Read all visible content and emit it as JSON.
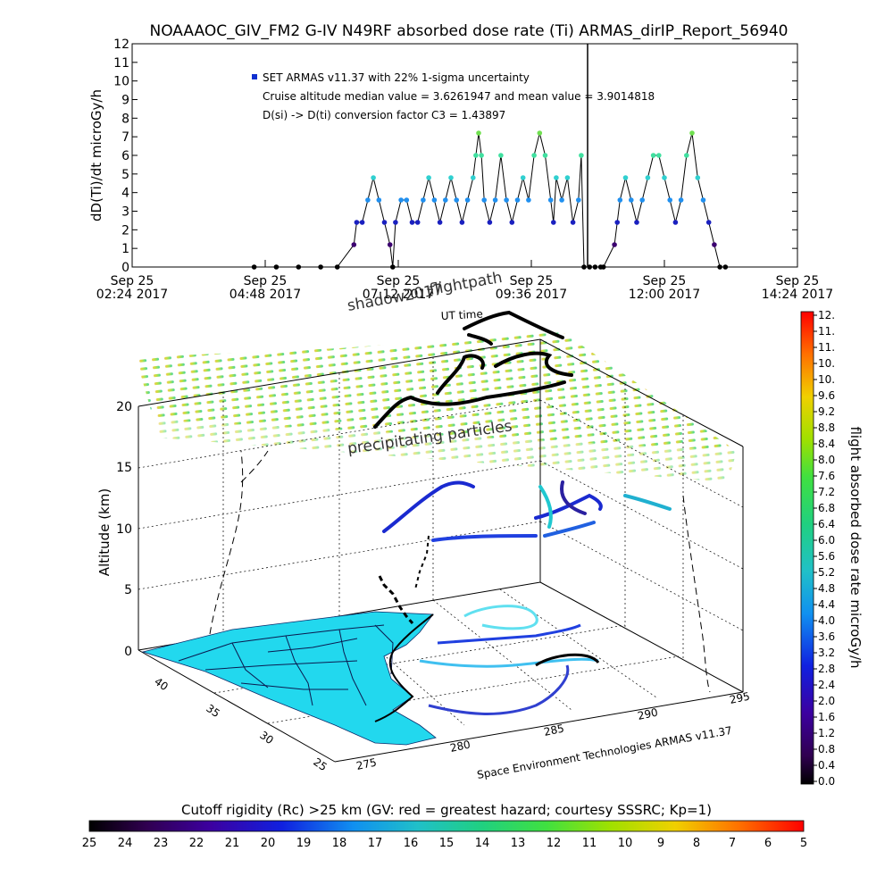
{
  "title": "NOAAAOC_GIV_FM2 G-IV   N49RF  absorbed dose rate (Ti) ARMAS_dirIP_Report_56940",
  "chart_data": [
    {
      "type": "line",
      "title": "NOAAAOC_GIV_FM2 G-IV   N49RF  absorbed dose rate (Ti) ARMAS_dirIP_Report_56940",
      "ylabel": "dD(Ti)/dt microGy/h",
      "xlabel": "",
      "ylim": [
        0,
        12
      ],
      "yticks": [
        "0",
        "1",
        "2",
        "3",
        "4",
        "5",
        "6",
        "7",
        "8",
        "9",
        "10",
        "11",
        "12"
      ],
      "xticks": [
        {
          "line1": "Sep 25",
          "line2": "02:24 2017"
        },
        {
          "line1": "Sep 25",
          "line2": "04:48 2017"
        },
        {
          "line1": "Sep 25",
          "line2": "07:12 2017"
        },
        {
          "line1": "Sep 25",
          "line2": "09:36 2017"
        },
        {
          "line1": "Sep 25",
          "line2": "12:00 2017"
        },
        {
          "line1": "Sep 25",
          "line2": "14:24 2017"
        }
      ],
      "xlim_hours": [
        2.4,
        14.4
      ],
      "annotations": [
        "SET ARMAS v11.37 with 22% 1-sigma uncertainty",
        "Cruise altitude median value = 3.6261947 and mean value = 3.9014818",
        "D(si) -> D(ti) conversion factor C3 = 1.43897"
      ],
      "legend_marker_color": "#1030d0",
      "series": [
        {
          "x": [
            4.6,
            5.0,
            5.4,
            5.8,
            6.1,
            6.4,
            6.45,
            6.55,
            6.65,
            6.75,
            6.85,
            6.95,
            7.05,
            7.1,
            7.15,
            7.25,
            7.35,
            7.45,
            7.55,
            7.65,
            7.75,
            7.85,
            7.95,
            8.05,
            8.15,
            8.25,
            8.35,
            8.45,
            8.55,
            8.6,
            8.65,
            8.7,
            8.75,
            8.85,
            8.95,
            9.05,
            9.15,
            9.25,
            9.35,
            9.45,
            9.55,
            9.65,
            9.75,
            9.85,
            9.95,
            10.0,
            10.05,
            10.15,
            10.25,
            10.35,
            10.45,
            10.5,
            10.55,
            10.65,
            10.75,
            10.85,
            10.9,
            11.1,
            11.15,
            11.2,
            11.3,
            11.4,
            11.5,
            11.6,
            11.7,
            11.8,
            11.9,
            12.0,
            12.1,
            12.2,
            12.3,
            12.4,
            12.5,
            12.6,
            12.7,
            12.8,
            12.9,
            13.0,
            13.1
          ],
          "y": [
            0,
            0,
            0,
            0,
            0,
            1.2,
            2.4,
            2.4,
            3.6,
            4.8,
            3.6,
            2.4,
            1.2,
            0,
            2.4,
            3.6,
            3.6,
            2.4,
            2.4,
            3.6,
            4.8,
            3.6,
            2.4,
            3.6,
            4.8,
            3.6,
            2.4,
            3.6,
            4.8,
            6.0,
            7.2,
            6.0,
            3.6,
            2.4,
            3.6,
            6.0,
            3.6,
            2.4,
            3.6,
            4.8,
            3.6,
            6.0,
            7.2,
            6.0,
            3.6,
            2.4,
            4.8,
            3.6,
            4.8,
            2.4,
            3.6,
            6.0,
            0,
            0,
            0,
            0,
            0,
            1.2,
            2.4,
            3.6,
            4.8,
            3.6,
            2.4,
            3.6,
            4.8,
            6.0,
            6.0,
            4.8,
            3.6,
            2.4,
            3.6,
            6.0,
            7.2,
            4.8,
            3.6,
            2.4,
            1.2,
            0,
            0
          ]
        }
      ]
    },
    {
      "type": "scatter",
      "title": "",
      "zlabel": "Altitude (km)",
      "zlim": [
        0,
        20
      ],
      "zticks": [
        "0",
        "5",
        "10",
        "15",
        "20"
      ],
      "lat_ticks": [
        "40",
        "35",
        "30",
        "25"
      ],
      "lon_ticks": [
        "275",
        "280",
        "285",
        "290",
        "295"
      ],
      "labels_3d": [
        "shadow2017",
        "flightpath",
        "UT time",
        "precipitating particles"
      ],
      "credit": "Space Environment Technologies ARMAS v11.37",
      "colorbar": {
        "label": "flight absorbed dose rate microGy/h",
        "range": [
          0.0,
          12.0
        ],
        "ticks": [
          "12.",
          "11.",
          "11.",
          "10.",
          "10.",
          "9.6",
          "9.2",
          "8.8",
          "8.4",
          "8.0",
          "7.6",
          "7.2",
          "6.8",
          "6.4",
          "6.0",
          "5.6",
          "5.2",
          "4.8",
          "4.4",
          "4.0",
          "3.6",
          "3.2",
          "2.8",
          "2.4",
          "2.0",
          "1.6",
          "1.2",
          "0.8",
          "0.4",
          "0.0"
        ]
      },
      "cutoff_bar": {
        "label": "Cutoff rigidity (Rc) >25 km (GV: red = greatest hazard; courtesy SSSRC; Kp=1)",
        "ticks": [
          "25",
          "24",
          "23",
          "22",
          "21",
          "20",
          "19",
          "18",
          "17",
          "16",
          "15",
          "14",
          "13",
          "12",
          "11",
          "10",
          "9",
          "8",
          "7",
          "6",
          "5"
        ]
      }
    }
  ]
}
